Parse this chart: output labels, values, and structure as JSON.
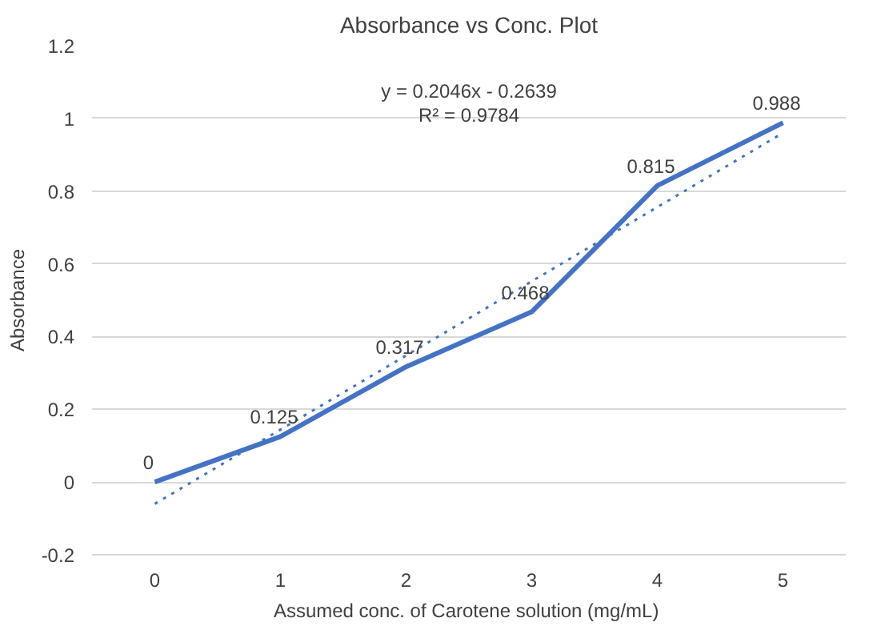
{
  "chart_data": {
    "type": "line",
    "title": "Absorbance vs Conc. Plot",
    "xlabel": "Assumed conc.  of Carotene solution (mg/mL)",
    "ylabel": "Absorbance",
    "categories": [
      "0",
      "1",
      "2",
      "3",
      "4",
      "5"
    ],
    "series": [
      {
        "color": "#4472c4",
        "values": [
          0,
          0.125,
          0.317,
          0.468,
          0.815,
          0.988
        ],
        "data_labels": true
      },
      {
        "type": "line",
        "color": "#4472c4",
        "line_style": "dotted",
        "x": [
          "0",
          "5"
        ],
        "values": [
          -0.06,
          0.96
        ]
      }
    ],
    "ylim": [
      -0.2,
      1.2
    ],
    "yticks": [
      -0.2,
      0,
      0.2,
      0.4,
      0.6,
      0.8,
      1,
      1.2
    ],
    "grid": "y",
    "marker": "none",
    "annotations": [
      "y = 0.2046x - 0.2639",
      "R² = 0.9784"
    ]
  }
}
